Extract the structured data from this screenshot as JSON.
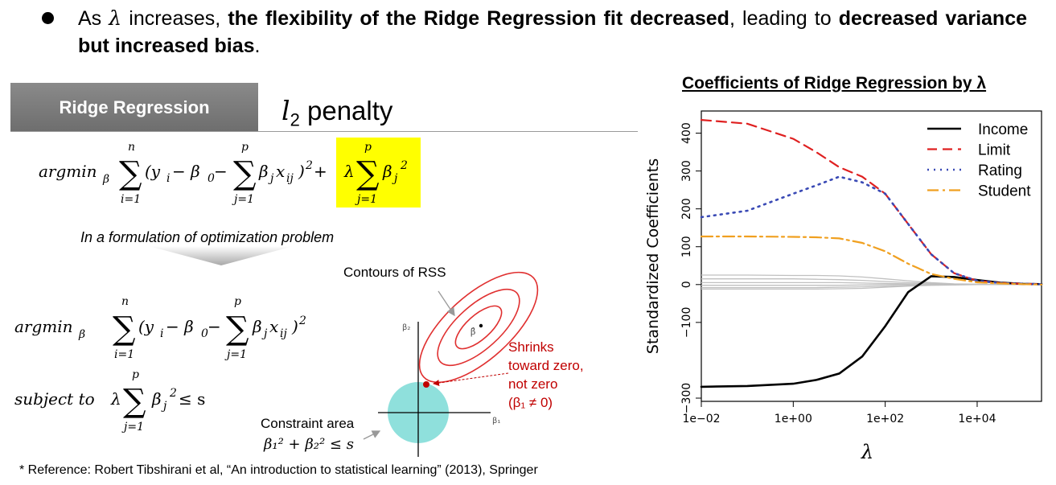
{
  "bullet": {
    "text_1": "As ",
    "lambda": "λ",
    "text_2": " increases, ",
    "bold_1": "the flexibility of the Ridge Regression fit decreased",
    "text_3": ", leading to ",
    "bold_2": "decreased variance but increased bias",
    "text_4": "."
  },
  "header": {
    "label": "Ridge Regression",
    "penalty_l": "l",
    "penalty_sub": "2",
    "penalty_text": "penalty"
  },
  "formula1": {
    "argmin": "argmin",
    "argmin_sub": "β",
    "sum1_top": "n",
    "sum1_bottom": "i=1",
    "body1": "(y",
    "body1_sub": "i",
    "body2": " − β",
    "body2_sub": "0",
    "body3": " − ",
    "sum2_top": "p",
    "sum2_bottom": "j=1",
    "body4": "β",
    "body4_sub": "j",
    "body5": "x",
    "body5_sub": "ij",
    "body6": ")",
    "body6_sup": "2",
    "plus": " + ",
    "lambda": "λ",
    "sum3_top": "p",
    "sum3_bottom": "j=1",
    "beta": "β",
    "beta_sub": "j",
    "beta_sup": "2"
  },
  "formulation_note": "In a formulation of optimization problem",
  "formula2": {
    "argmin": "argmin",
    "argmin_sub": "β",
    "sum1_top": "n",
    "sum1_bottom": "i=1",
    "body1": "(y",
    "body1_sub": "i",
    "body2": " − β",
    "body2_sub": "0",
    "body3": " − ",
    "sum2_top": "p",
    "sum2_bottom": "j=1",
    "body4": "β",
    "body4_sub": "j",
    "body5": "x",
    "body5_sub": "ij",
    "body6": ")",
    "body6_sup": "2"
  },
  "formula3": {
    "subject_to": "subject to",
    "lambda": "λ",
    "sum_top": "p",
    "sum_bottom": "j=1",
    "beta": "β",
    "beta_sub": "j",
    "beta_sup": "2",
    "rest": " ≤ s"
  },
  "diagram": {
    "contours_label": "Contours of RSS",
    "axis_beta2": "β₂",
    "axis_beta1": "β₁",
    "beta_hat": "β̂",
    "shrink_lines": [
      "Shrinks",
      "toward zero,",
      "not zero",
      "(β₁ ≠ 0)"
    ],
    "constraint_label": "Constraint area",
    "constraint_formula": "β₁² + β₂² ≤ s",
    "ellipse_color": "#e03030",
    "circle_color": "#8fe0dc",
    "shrink_color": "#c00000"
  },
  "reference": "* Reference: Robert Tibshirani et al, “An introduction to statistical learning” (2013), Springer",
  "chart_title": "Coefficients of Ridge Regression by λ",
  "chart_data": {
    "type": "line",
    "xscale": "log10",
    "xlim_log10": [
      -2,
      5.4
    ],
    "x_log10": [
      -2,
      -1,
      0,
      0.5,
      1,
      1.5,
      2,
      2.5,
      3,
      3.5,
      4,
      4.5,
      5,
      5.4
    ],
    "ylim": [
      -300,
      450
    ],
    "xlabel": "λ",
    "ylabel": "Standardized Coefficients",
    "x_ticks": [
      "1e−02",
      "1e+00",
      "1e+02",
      "1e+04"
    ],
    "x_tick_log10": [
      -2,
      0,
      2,
      4
    ],
    "y_ticks": [
      -300,
      -100,
      0,
      100,
      200,
      300,
      400
    ],
    "y_tick_labels": [
      "−300",
      "−100",
      "0",
      "100",
      "200",
      "300",
      "400"
    ],
    "series": [
      {
        "name": "Income",
        "color": "#000000",
        "dash": "",
        "width": 2.6,
        "values": [
          -270,
          -268,
          -262,
          -252,
          -235,
          -190,
          -110,
          -20,
          22,
          20,
          12,
          5,
          2,
          1
        ]
      },
      {
        "name": "Limit",
        "color": "#df2020",
        "dash": "12,7",
        "width": 2.2,
        "values": [
          435,
          425,
          385,
          350,
          310,
          285,
          240,
          160,
          80,
          30,
          10,
          4,
          2,
          1
        ]
      },
      {
        "name": "Rating",
        "color": "#3a4ab5",
        "dash": "2,6",
        "width": 2.6,
        "values": [
          178,
          195,
          240,
          262,
          285,
          270,
          240,
          160,
          80,
          30,
          10,
          4,
          2,
          1
        ]
      },
      {
        "name": "Student",
        "color": "#f0a020",
        "dash": "14,5,3,5",
        "width": 2.2,
        "values": [
          127,
          127,
          126,
          125,
          122,
          110,
          88,
          55,
          28,
          15,
          6,
          3,
          1,
          0
        ]
      }
    ],
    "grey_series": [
      [
        25,
        25,
        24,
        24,
        23,
        20,
        15,
        10,
        5,
        2,
        1,
        0,
        0,
        0
      ],
      [
        15,
        15,
        15,
        14,
        13,
        11,
        8,
        5,
        3,
        1,
        0,
        0,
        0,
        0
      ],
      [
        5,
        5,
        5,
        5,
        5,
        4,
        3,
        2,
        1,
        0,
        0,
        0,
        0,
        0
      ],
      [
        -2,
        -2,
        -2,
        -2,
        -2,
        -1,
        0,
        1,
        1,
        0,
        0,
        0,
        0,
        0
      ],
      [
        -8,
        -8,
        -8,
        -8,
        -7,
        -6,
        -4,
        -2,
        -1,
        0,
        0,
        0,
        0,
        0
      ],
      [
        -12,
        -12,
        -12,
        -12,
        -11,
        -10,
        -7,
        -4,
        -2,
        -1,
        0,
        0,
        0,
        0
      ]
    ],
    "grey_color": "#c0c0c0"
  }
}
